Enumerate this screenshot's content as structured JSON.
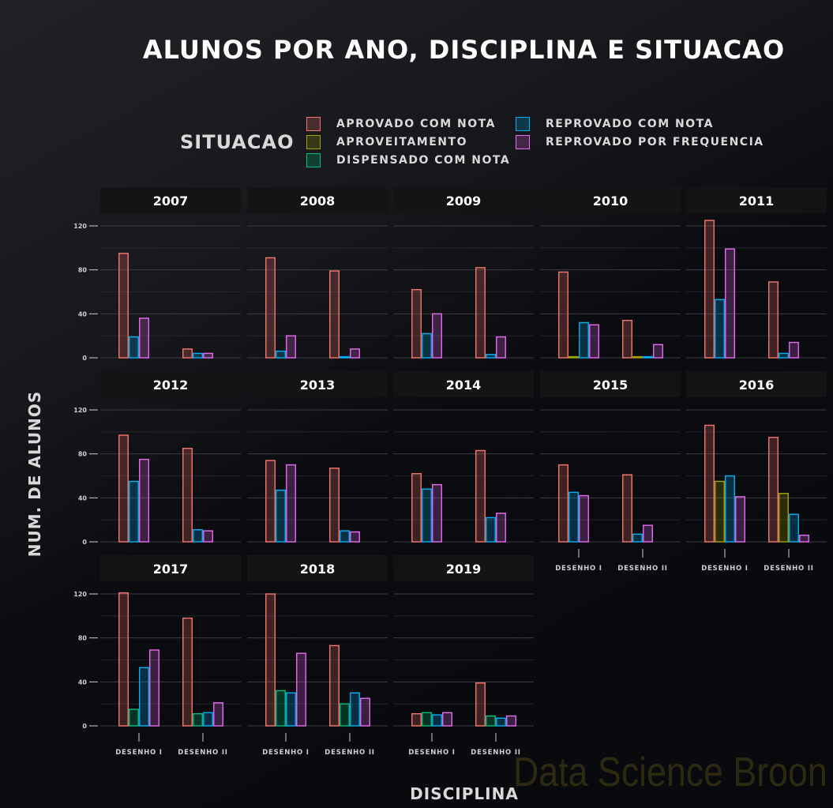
{
  "title": "ALUNOS POR ANO, DISCIPLINA E SITUACAO",
  "legend": {
    "title": "SITUACAO",
    "items": [
      {
        "label": "APROVADO COM NOTA",
        "color": "#f8766d"
      },
      {
        "label": "APROVEITAMENTO",
        "color": "#a3a500"
      },
      {
        "label": "DISPENSADO COM NOTA",
        "color": "#00bf7d"
      },
      {
        "label": "REPROVADO COM NOTA",
        "color": "#00b0f6"
      },
      {
        "label": "REPROVADO POR FREQUENCIA",
        "color": "#e76bf3"
      }
    ]
  },
  "watermark": "Data Science Broon",
  "chart_data": {
    "type": "bar",
    "title": "ALUNOS POR ANO, DISCIPLINA E SITUACAO",
    "xlabel": "DISCIPLINA",
    "ylabel": "NUM. DE ALUNOS",
    "categories": [
      "DESENHO I",
      "DESENHO II"
    ],
    "series_names": [
      "APROVADO COM NOTA",
      "APROVEITAMENTO",
      "DISPENSADO COM NOTA",
      "REPROVADO COM NOTA",
      "REPROVADO POR FREQUENCIA"
    ],
    "ylim": [
      0,
      130
    ],
    "yticks": [
      0,
      40,
      80,
      120
    ],
    "grid": true,
    "legend_position": "top",
    "facets": [
      {
        "year": "2007",
        "groups": [
          {
            "APROVADO COM NOTA": 95,
            "REPROVADO COM NOTA": 19,
            "REPROVADO POR FREQUENCIA": 36
          },
          {
            "APROVADO COM NOTA": 8,
            "REPROVADO COM NOTA": 4,
            "REPROVADO POR FREQUENCIA": 4
          }
        ]
      },
      {
        "year": "2008",
        "groups": [
          {
            "APROVADO COM NOTA": 91,
            "REPROVADO COM NOTA": 6,
            "REPROVADO POR FREQUENCIA": 20
          },
          {
            "APROVADO COM NOTA": 79,
            "REPROVADO COM NOTA": 1,
            "REPROVADO POR FREQUENCIA": 8
          }
        ]
      },
      {
        "year": "2009",
        "groups": [
          {
            "APROVADO COM NOTA": 62,
            "REPROVADO COM NOTA": 22,
            "REPROVADO POR FREQUENCIA": 40
          },
          {
            "APROVADO COM NOTA": 82,
            "REPROVADO COM NOTA": 3,
            "REPROVADO POR FREQUENCIA": 19
          }
        ]
      },
      {
        "year": "2010",
        "groups": [
          {
            "APROVADO COM NOTA": 78,
            "APROVEITAMENTO": 1,
            "REPROVADO COM NOTA": 32,
            "REPROVADO POR FREQUENCIA": 30
          },
          {
            "APROVADO COM NOTA": 34,
            "APROVEITAMENTO": 1,
            "REPROVADO COM NOTA": 1,
            "REPROVADO POR FREQUENCIA": 12
          }
        ]
      },
      {
        "year": "2011",
        "groups": [
          {
            "APROVADO COM NOTA": 125,
            "REPROVADO COM NOTA": 53,
            "REPROVADO POR FREQUENCIA": 99
          },
          {
            "APROVADO COM NOTA": 69,
            "REPROVADO COM NOTA": 4,
            "REPROVADO POR FREQUENCIA": 14
          }
        ]
      },
      {
        "year": "2012",
        "groups": [
          {
            "APROVADO COM NOTA": 97,
            "REPROVADO COM NOTA": 55,
            "REPROVADO POR FREQUENCIA": 75
          },
          {
            "APROVADO COM NOTA": 85,
            "REPROVADO COM NOTA": 11,
            "REPROVADO POR FREQUENCIA": 10
          }
        ]
      },
      {
        "year": "2013",
        "groups": [
          {
            "APROVADO COM NOTA": 74,
            "REPROVADO COM NOTA": 47,
            "REPROVADO POR FREQUENCIA": 70
          },
          {
            "APROVADO COM NOTA": 67,
            "REPROVADO COM NOTA": 10,
            "REPROVADO POR FREQUENCIA": 9
          }
        ]
      },
      {
        "year": "2014",
        "groups": [
          {
            "APROVADO COM NOTA": 62,
            "REPROVADO COM NOTA": 48,
            "REPROVADO POR FREQUENCIA": 52
          },
          {
            "APROVADO COM NOTA": 83,
            "REPROVADO COM NOTA": 22,
            "REPROVADO POR FREQUENCIA": 26
          }
        ]
      },
      {
        "year": "2015",
        "groups": [
          {
            "APROVADO COM NOTA": 70,
            "REPROVADO COM NOTA": 45,
            "REPROVADO POR FREQUENCIA": 42
          },
          {
            "APROVADO COM NOTA": 61,
            "REPROVADO COM NOTA": 7,
            "REPROVADO POR FREQUENCIA": 15
          }
        ]
      },
      {
        "year": "2016",
        "groups": [
          {
            "APROVADO COM NOTA": 106,
            "APROVEITAMENTO": 55,
            "REPROVADO COM NOTA": 60,
            "REPROVADO POR FREQUENCIA": 41
          },
          {
            "APROVADO COM NOTA": 95,
            "APROVEITAMENTO": 44,
            "REPROVADO COM NOTA": 25,
            "REPROVADO POR FREQUENCIA": 6
          }
        ]
      },
      {
        "year": "2017",
        "groups": [
          {
            "APROVADO COM NOTA": 121,
            "DISPENSADO COM NOTA": 15,
            "REPROVADO COM NOTA": 53,
            "REPROVADO POR FREQUENCIA": 69
          },
          {
            "APROVADO COM NOTA": 98,
            "DISPENSADO COM NOTA": 11,
            "REPROVADO COM NOTA": 12,
            "REPROVADO POR FREQUENCIA": 21
          }
        ]
      },
      {
        "year": "2018",
        "groups": [
          {
            "APROVADO COM NOTA": 120,
            "DISPENSADO COM NOTA": 32,
            "REPROVADO COM NOTA": 30,
            "REPROVADO POR FREQUENCIA": 66
          },
          {
            "APROVADO COM NOTA": 73,
            "DISPENSADO COM NOTA": 20,
            "REPROVADO COM NOTA": 30,
            "REPROVADO POR FREQUENCIA": 25
          }
        ]
      },
      {
        "year": "2019",
        "groups": [
          {
            "APROVADO COM NOTA": 11,
            "DISPENSADO COM NOTA": 12,
            "REPROVADO COM NOTA": 10,
            "REPROVADO POR FREQUENCIA": 12
          },
          {
            "APROVADO COM NOTA": 39,
            "DISPENSADO COM NOTA": 9,
            "REPROVADO COM NOTA": 7,
            "REPROVADO POR FREQUENCIA": 9
          }
        ]
      }
    ]
  }
}
